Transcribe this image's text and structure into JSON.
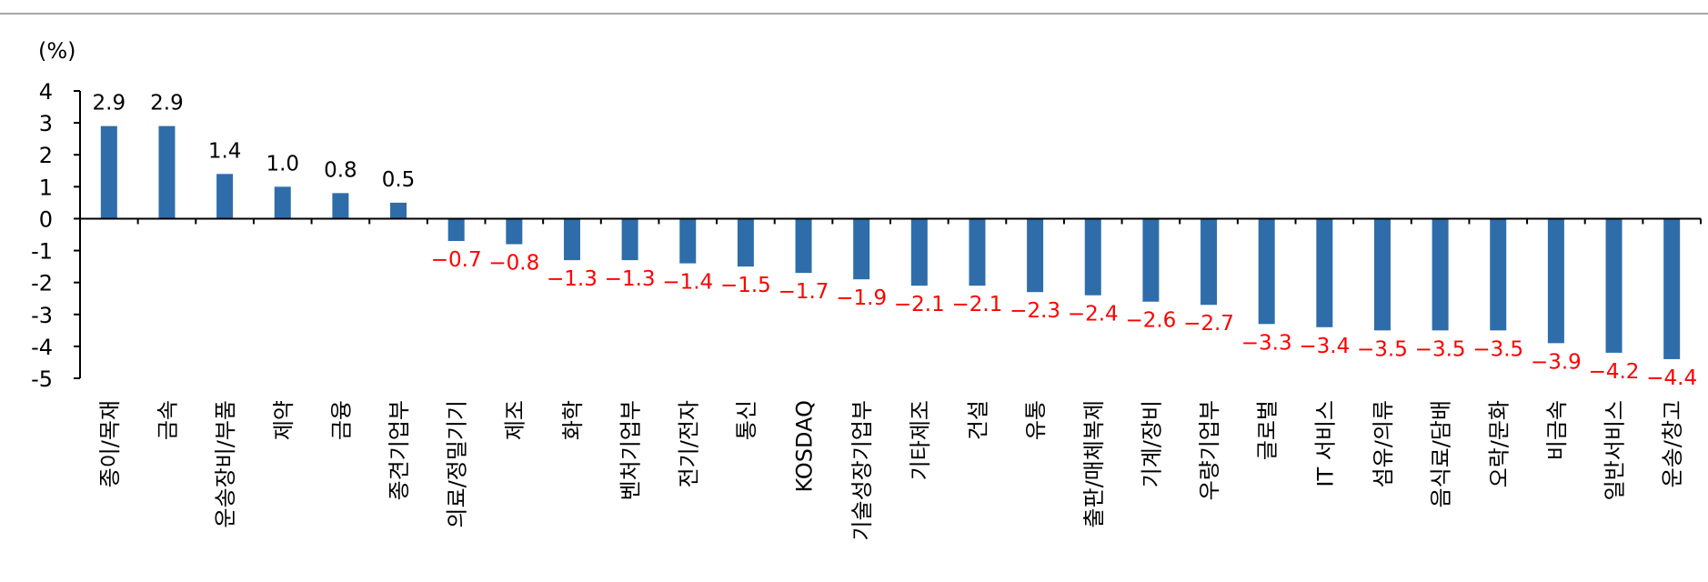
{
  "chart_data": {
    "type": "bar",
    "title": "",
    "ylabel": "(%)",
    "xlabel": "",
    "ylim": [
      -5,
      4
    ],
    "yticks": [
      4,
      3,
      2,
      1,
      0,
      -1,
      -2,
      -3,
      -4,
      -5
    ],
    "grid": false,
    "legend": "none",
    "categories": [
      "종이/목재",
      "금속",
      "운송장비/부품",
      "제약",
      "금융",
      "종견기업부",
      "의료/정밀기기",
      "제조",
      "화학",
      "벤처기업부",
      "전기/전자",
      "통신",
      "KOSDAQ",
      "기술성장기업부",
      "기타제조",
      "건설",
      "유통",
      "출판/매체복제",
      "기계/장비",
      "우량기업부",
      "글로벌",
      "IT 서비스",
      "섬유/의류",
      "음식료/담배",
      "오락/문화",
      "비금속",
      "일반서비스",
      "운송/창고"
    ],
    "values": [
      2.9,
      2.9,
      1.4,
      1.0,
      0.8,
      0.5,
      -0.7,
      -0.8,
      -1.3,
      -1.3,
      -1.4,
      -1.5,
      -1.7,
      -1.9,
      -2.1,
      -2.1,
      -2.3,
      -2.4,
      -2.6,
      -2.7,
      -3.3,
      -3.4,
      -3.5,
      -3.5,
      -3.5,
      -3.9,
      -4.2,
      -4.4
    ],
    "value_labels": [
      "2.9",
      "2.9",
      "1.4",
      "1.0",
      "0.8",
      "0.5",
      "−0.7",
      "−0.8",
      "−1.3",
      "−1.3",
      "−1.4",
      "−1.5",
      "−1.7",
      "−1.9",
      "−2.1",
      "−2.1",
      "−2.3",
      "−2.4",
      "−2.6",
      "−2.7",
      "−3.3",
      "−3.4",
      "−3.5",
      "−3.5",
      "−3.5",
      "−3.9",
      "−4.2",
      "−4.4"
    ],
    "colors": {
      "bar": "#2E6DAA",
      "positive_label": "#000000",
      "negative_label": "#FF0000",
      "axis": "#000000",
      "top_rule": "#A6A6A6"
    }
  }
}
